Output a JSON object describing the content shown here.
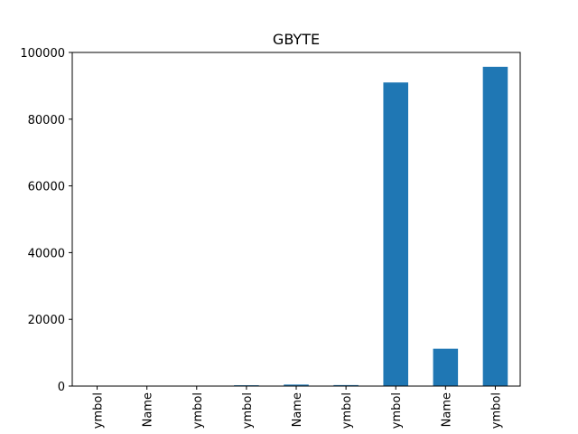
{
  "chart_data": {
    "type": "bar",
    "title": "GBYTE",
    "xlabel": "",
    "ylabel": "",
    "categories": [
      "ymbol",
      "Name",
      "ymbol",
      "ymbol",
      "Name",
      "ymbol",
      "ymbol",
      "Name",
      "ymbol"
    ],
    "values": [
      0,
      0,
      0,
      250,
      450,
      300,
      91000,
      11200,
      95700
    ],
    "ylim": [
      0,
      100000
    ],
    "yticks": [
      0,
      20000,
      40000,
      60000,
      80000,
      100000
    ],
    "ytick_labels": [
      "0",
      "20000",
      "40000",
      "60000",
      "80000",
      "100000"
    ],
    "bar_color": "#1f77b4",
    "grid": false,
    "legend": "none"
  }
}
